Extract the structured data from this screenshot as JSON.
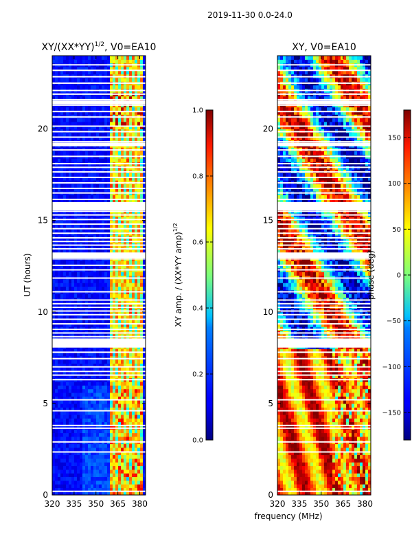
{
  "figure_title": "2019-11-30 0.0-24.0",
  "shared_xlabel": "frequency (MHz)",
  "chart_data": [
    {
      "type": "heatmap",
      "title": "XY/(XX*YY)$^{1/2}$, V0=EA10",
      "title_base": "XY/(XX*YY)",
      "title_sup": "1/2",
      "title_suffix": ", V0=EA10",
      "ylabel": "UT (hours)",
      "xlim": [
        320,
        384
      ],
      "ylim": [
        0,
        24
      ],
      "xticks": [
        320,
        335,
        350,
        365,
        380
      ],
      "yticks": [
        0,
        5,
        10,
        15,
        20
      ],
      "bright_band_mhz": [
        360,
        382
      ],
      "colorbar": {
        "label": "XY amp. / (XX*YY amp)$^{1/2}$",
        "label_base": "XY amp. / (XX*YY amp)",
        "label_sup": "1/2",
        "range": [
          0.0,
          1.0
        ],
        "ticks": [
          "0.0",
          "0.2",
          "0.4",
          "0.6",
          "0.8",
          "1.0"
        ],
        "tick_values": [
          0.0,
          0.2,
          0.4,
          0.6,
          0.8,
          1.0
        ]
      }
    },
    {
      "type": "heatmap",
      "title": "XY, V0=EA10",
      "xlim": [
        320,
        384
      ],
      "ylim": [
        0,
        24
      ],
      "xticks": [
        320,
        335,
        350,
        365,
        380
      ],
      "yticks": [
        0,
        5,
        10,
        15,
        20
      ],
      "colorbar": {
        "label": "phase (deg)",
        "range": [
          -180,
          180
        ],
        "ticks": [
          "150",
          "100",
          "50",
          "0",
          "−50",
          "−100",
          "−150"
        ],
        "tick_values": [
          150,
          100,
          50,
          0,
          -50,
          -100,
          -150
        ]
      }
    }
  ],
  "flagged_hours": [
    0.2,
    2.35,
    2.9,
    3.65,
    3.8,
    4.6,
    5.2,
    6.3,
    6.55,
    6.75,
    7.0,
    7.45,
    7.8,
    8.15,
    8.35,
    8.65,
    8.85,
    9.05,
    9.35,
    9.6,
    9.85,
    10.05,
    10.25,
    10.45,
    10.65,
    11.1,
    11.85,
    12.3,
    12.55,
    12.9,
    13.1,
    13.45,
    13.65,
    13.85,
    14.05,
    14.3,
    14.55,
    14.8,
    15.05,
    15.3,
    15.5,
    15.7,
    15.85,
    16.15,
    16.5,
    16.75,
    17.05,
    17.35,
    17.65,
    17.9,
    18.1,
    18.5,
    18.85,
    19.1,
    19.3,
    19.55,
    19.85,
    20.15,
    20.65,
    20.95,
    21.3,
    21.6,
    21.9,
    22.1,
    22.5,
    22.85,
    23.2,
    23.5
  ]
}
